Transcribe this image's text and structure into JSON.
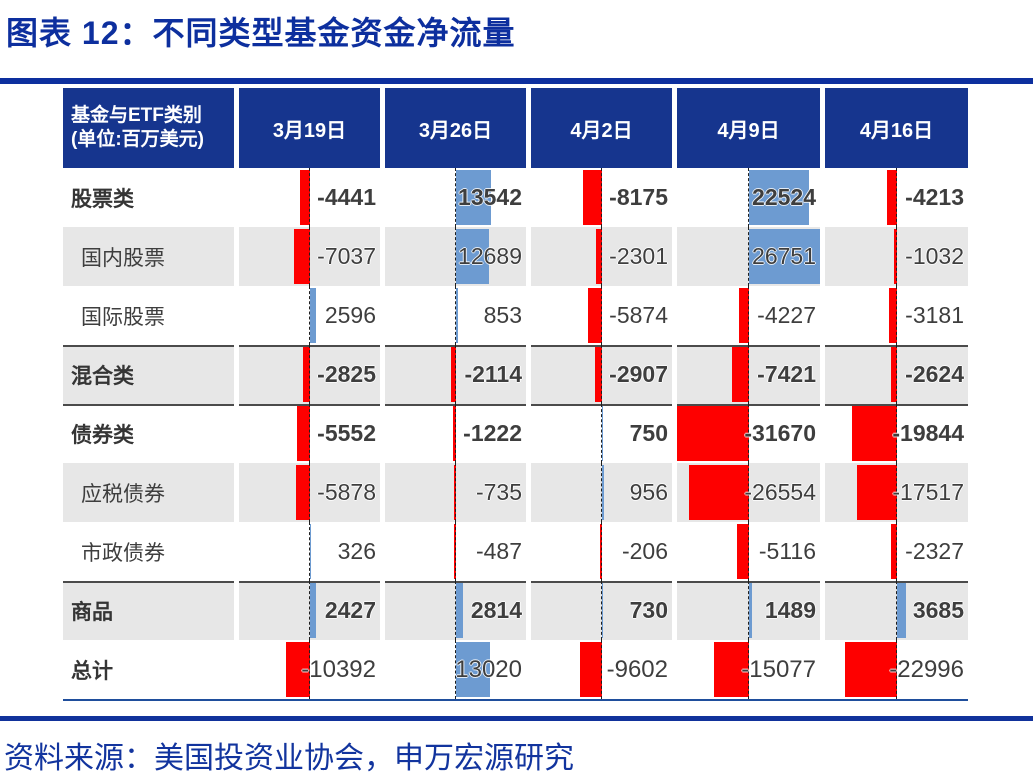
{
  "title": "图表 12：不同类型基金资金净流量",
  "source": "资料来源：美国投资业协会，申万宏源研究",
  "table": {
    "header": {
      "label_line1": "基金与ETF类别",
      "label_line2": "(单位:百万美元)"
    }
  },
  "colors": {
    "navy_header": "#16358e",
    "title_blue": "#0d2f9e",
    "bar_negative": "#fe0000",
    "bar_positive": "#6d9bd1",
    "row_shade": "#e7e7e7",
    "group_separator": "#4b4b4b",
    "table_bottom_border": "#1f4e9c"
  },
  "chart_data": {
    "type": "table",
    "title": "不同类型基金资金净流量",
    "unit": "百万美元",
    "categories": [
      "3月19日",
      "3月26日",
      "4月2日",
      "4月9日",
      "4月16日"
    ],
    "series": [
      {
        "name": "股票类",
        "values": [
          -4441,
          13542,
          -8175,
          22524,
          -4213
        ],
        "bold": true,
        "indent": false,
        "shaded": false,
        "separator_top": false,
        "numbers_regular": false
      },
      {
        "name": "国内股票",
        "values": [
          -7037,
          12689,
          -2301,
          26751,
          -1032
        ],
        "bold": false,
        "indent": true,
        "shaded": true,
        "separator_top": false,
        "numbers_regular": false
      },
      {
        "name": "国际股票",
        "values": [
          2596,
          853,
          -5874,
          -4227,
          -3181
        ],
        "bold": false,
        "indent": true,
        "shaded": false,
        "separator_top": false,
        "numbers_regular": false
      },
      {
        "name": "混合类",
        "values": [
          -2825,
          -2114,
          -2907,
          -7421,
          -2624
        ],
        "bold": true,
        "indent": false,
        "shaded": true,
        "separator_top": true,
        "numbers_regular": false
      },
      {
        "name": "债券类",
        "values": [
          -5552,
          -1222,
          750,
          -31670,
          -19844
        ],
        "bold": true,
        "indent": false,
        "shaded": false,
        "separator_top": true,
        "numbers_regular": false
      },
      {
        "name": "应税债券",
        "values": [
          -5878,
          -735,
          956,
          -26554,
          -17517
        ],
        "bold": false,
        "indent": true,
        "shaded": true,
        "separator_top": false,
        "numbers_regular": false
      },
      {
        "name": "市政债券",
        "values": [
          326,
          -487,
          -206,
          -5116,
          -2327
        ],
        "bold": false,
        "indent": true,
        "shaded": false,
        "separator_top": false,
        "numbers_regular": false
      },
      {
        "name": "商品",
        "values": [
          2427,
          2814,
          730,
          1489,
          3685
        ],
        "bold": true,
        "indent": false,
        "shaded": true,
        "separator_top": true,
        "numbers_regular": false
      },
      {
        "name": "总计",
        "values": [
          -10392,
          13020,
          -9602,
          -15077,
          -22996
        ],
        "bold": true,
        "indent": false,
        "shaded": false,
        "separator_top": false,
        "numbers_regular": true
      }
    ],
    "bar_style": "in-cell data bars; zero axis dashed at cell midpoint; negative bars red extend left, positive bars steel-blue extend right; bar length scaled to global min -31670 (left half) and global max 26751 (right half)",
    "legend_position": "none",
    "grid": false
  }
}
